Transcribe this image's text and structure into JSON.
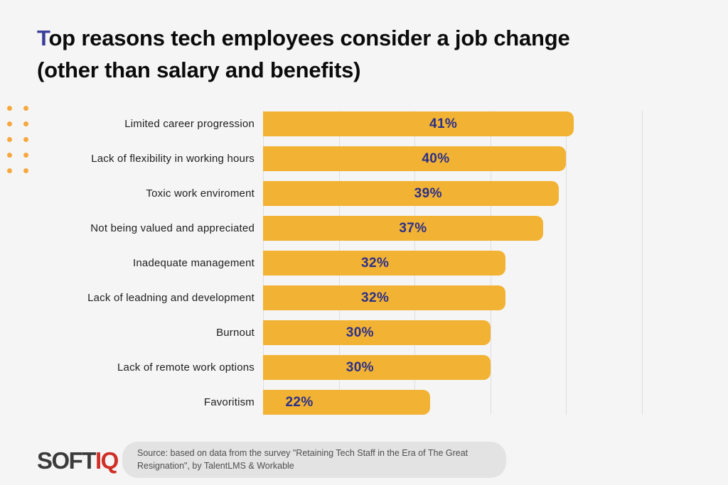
{
  "title": {
    "line1_accent": "T",
    "line1_rest": "op reasons tech employees consider a job change",
    "line2": "(other than salary and benefits)"
  },
  "chart_data": {
    "type": "bar",
    "orientation": "horizontal",
    "title": "Top reasons tech employees consider a job change (other than salary and benefits)",
    "categories": [
      "Limited career progression",
      "Lack of flexibility in working hours",
      "Toxic work enviroment",
      "Not being valued and appreciated",
      "Inadequate management",
      "Lack of leadning and development",
      "Burnout",
      "Lack of remote work options",
      "Favoritism"
    ],
    "values": [
      41,
      40,
      39,
      37,
      32,
      32,
      30,
      30,
      22
    ],
    "value_labels": [
      "41%",
      "40%",
      "39%",
      "37%",
      "32%",
      "32%",
      "30%",
      "30%",
      "22%"
    ],
    "xlim": [
      0,
      50
    ],
    "gridline_interval_percent": 10,
    "grid": true,
    "legend": false,
    "bar_color": "#F2B233",
    "value_label_color": "#2B3088"
  },
  "decoration": {
    "dot_rows": 5,
    "dot_cols": 2
  },
  "footer": {
    "logo_part1": "SOFT",
    "logo_part2": "IQ",
    "source_lines": [
      "Source: based on data from the survey \"Retaining Tech Staff in the Era of The Great",
      "Resignation\", by TalentLMS & Workable"
    ]
  },
  "colors": {
    "background": "#F5F5F5",
    "title_accent": "#3B3E99",
    "title_text": "#0B0B0B",
    "category_label": "#1E1E1E",
    "bar": "#F2B233",
    "value_label": "#2B3088",
    "gridline": "#DEDEDE",
    "dots": "#F6A83C",
    "pill_bg": "#E3E3E3",
    "pill_text": "#4E4E4E",
    "logo_dark": "#3B3B3B",
    "logo_red": "#CE2F26"
  }
}
